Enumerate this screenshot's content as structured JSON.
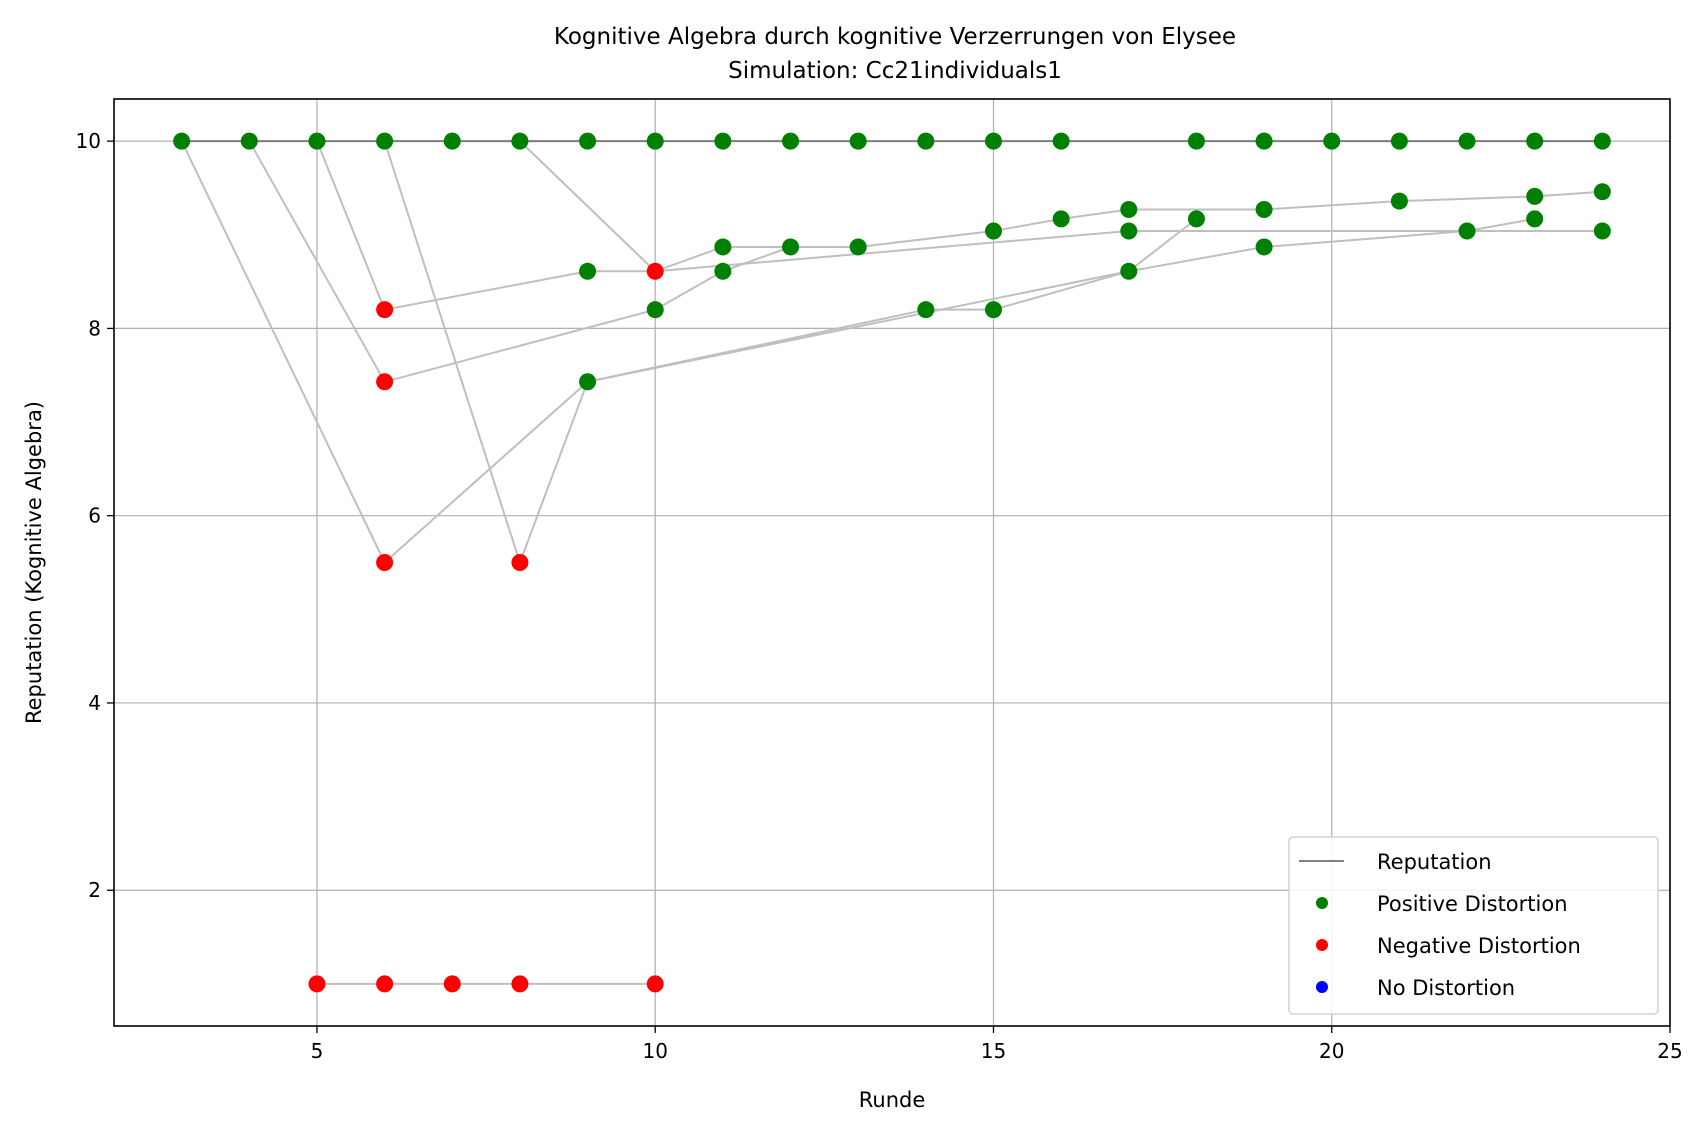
{
  "chart_data": {
    "type": "scatter",
    "title": "Kognitive Algebra durch kognitive Verzerrungen von Elysee",
    "subtitle": "Simulation: Cc21individuals1",
    "xlabel": "Runde",
    "ylabel": "Reputation (Kognitive Algebra)",
    "xlim": [
      2,
      25
    ],
    "ylim": [
      0.55,
      10.45
    ],
    "xticks": [
      5,
      10,
      15,
      20,
      25
    ],
    "yticks": [
      2,
      4,
      6,
      8,
      10
    ],
    "grid": true,
    "legend_position": "lower-right",
    "legend": [
      {
        "label": "Reputation",
        "kind": "line",
        "color": "#808080"
      },
      {
        "label": "Positive Distortion",
        "kind": "marker",
        "color": "#008000"
      },
      {
        "label": "Negative Distortion",
        "kind": "marker",
        "color": "#ff0000"
      },
      {
        "label": "No Distortion",
        "kind": "marker",
        "color": "#0000ff"
      }
    ],
    "reputation_line": {
      "y": 10,
      "x": [
        3,
        24
      ],
      "color": "#808080"
    },
    "connector_color": "#bfbfbf",
    "connectors": [
      [
        [
          3,
          10
        ],
        [
          4,
          10
        ],
        [
          5,
          10
        ],
        [
          6,
          10
        ],
        [
          7,
          10
        ],
        [
          8,
          10
        ],
        [
          9,
          10
        ],
        [
          10,
          10
        ],
        [
          11,
          10
        ],
        [
          12,
          10
        ],
        [
          13,
          10
        ],
        [
          14,
          10
        ],
        [
          15,
          10
        ],
        [
          16,
          10
        ],
        [
          18,
          10
        ],
        [
          19,
          10
        ],
        [
          20,
          10
        ],
        [
          21,
          10
        ],
        [
          22,
          10
        ],
        [
          23,
          10
        ],
        [
          24,
          10
        ]
      ],
      [
        [
          3,
          10
        ],
        [
          6,
          5.5
        ],
        [
          9,
          7.43
        ],
        [
          14,
          8.2
        ],
        [
          15,
          8.2
        ],
        [
          17,
          8.61
        ],
        [
          19,
          8.87
        ],
        [
          22,
          9.04
        ],
        [
          23,
          9.17
        ]
      ],
      [
        [
          4,
          10
        ],
        [
          6,
          7.43
        ],
        [
          10,
          8.2
        ],
        [
          11,
          8.61
        ],
        [
          12,
          8.87
        ],
        [
          13,
          8.87
        ],
        [
          15,
          9.04
        ],
        [
          16,
          9.17
        ],
        [
          17,
          9.27
        ],
        [
          19,
          9.27
        ],
        [
          21,
          9.36
        ],
        [
          23,
          9.41
        ],
        [
          24,
          9.46
        ]
      ],
      [
        [
          5,
          10
        ],
        [
          6,
          8.2
        ],
        [
          9,
          8.61
        ],
        [
          10,
          8.61
        ],
        [
          11,
          8.87
        ],
        [
          12,
          8.87
        ]
      ],
      [
        [
          6,
          10
        ],
        [
          8,
          5.5
        ],
        [
          9,
          7.43
        ],
        [
          17,
          8.61
        ],
        [
          18,
          9.17
        ]
      ],
      [
        [
          8,
          10
        ],
        [
          10,
          8.61
        ],
        [
          17,
          9.04
        ],
        [
          24,
          9.04
        ]
      ],
      [
        [
          5,
          1
        ],
        [
          6,
          1
        ],
        [
          7,
          1
        ],
        [
          8,
          1
        ],
        [
          10,
          1
        ]
      ]
    ],
    "series": [
      {
        "name": "Positive Distortion",
        "color": "#008000",
        "points": [
          [
            3,
            10
          ],
          [
            4,
            10
          ],
          [
            5,
            10
          ],
          [
            6,
            10
          ],
          [
            7,
            10
          ],
          [
            8,
            10
          ],
          [
            9,
            10
          ],
          [
            10,
            10
          ],
          [
            11,
            10
          ],
          [
            12,
            10
          ],
          [
            13,
            10
          ],
          [
            14,
            10
          ],
          [
            15,
            10
          ],
          [
            16,
            10
          ],
          [
            18,
            10
          ],
          [
            19,
            10
          ],
          [
            20,
            10
          ],
          [
            21,
            10
          ],
          [
            22,
            10
          ],
          [
            23,
            10
          ],
          [
            24,
            10
          ],
          [
            9,
            8.61
          ],
          [
            9,
            7.43
          ],
          [
            10,
            8.2
          ],
          [
            11,
            8.87
          ],
          [
            11,
            8.61
          ],
          [
            12,
            8.87
          ],
          [
            13,
            8.87
          ],
          [
            14,
            8.2
          ],
          [
            15,
            9.04
          ],
          [
            15,
            8.2
          ],
          [
            16,
            9.17
          ],
          [
            17,
            9.27
          ],
          [
            17,
            9.04
          ],
          [
            17,
            8.61
          ],
          [
            18,
            9.17
          ],
          [
            19,
            9.27
          ],
          [
            19,
            8.87
          ],
          [
            21,
            9.36
          ],
          [
            22,
            9.04
          ],
          [
            23,
            9.41
          ],
          [
            23,
            9.17
          ],
          [
            24,
            9.46
          ],
          [
            24,
            9.04
          ]
        ]
      },
      {
        "name": "Negative Distortion",
        "color": "#ff0000",
        "points": [
          [
            6,
            8.2
          ],
          [
            6,
            7.43
          ],
          [
            6,
            5.5
          ],
          [
            8,
            5.5
          ],
          [
            10,
            8.61
          ],
          [
            5,
            1
          ],
          [
            6,
            1
          ],
          [
            7,
            1
          ],
          [
            8,
            1
          ],
          [
            10,
            1
          ]
        ]
      },
      {
        "name": "No Distortion",
        "color": "#0000ff",
        "points": []
      }
    ]
  }
}
